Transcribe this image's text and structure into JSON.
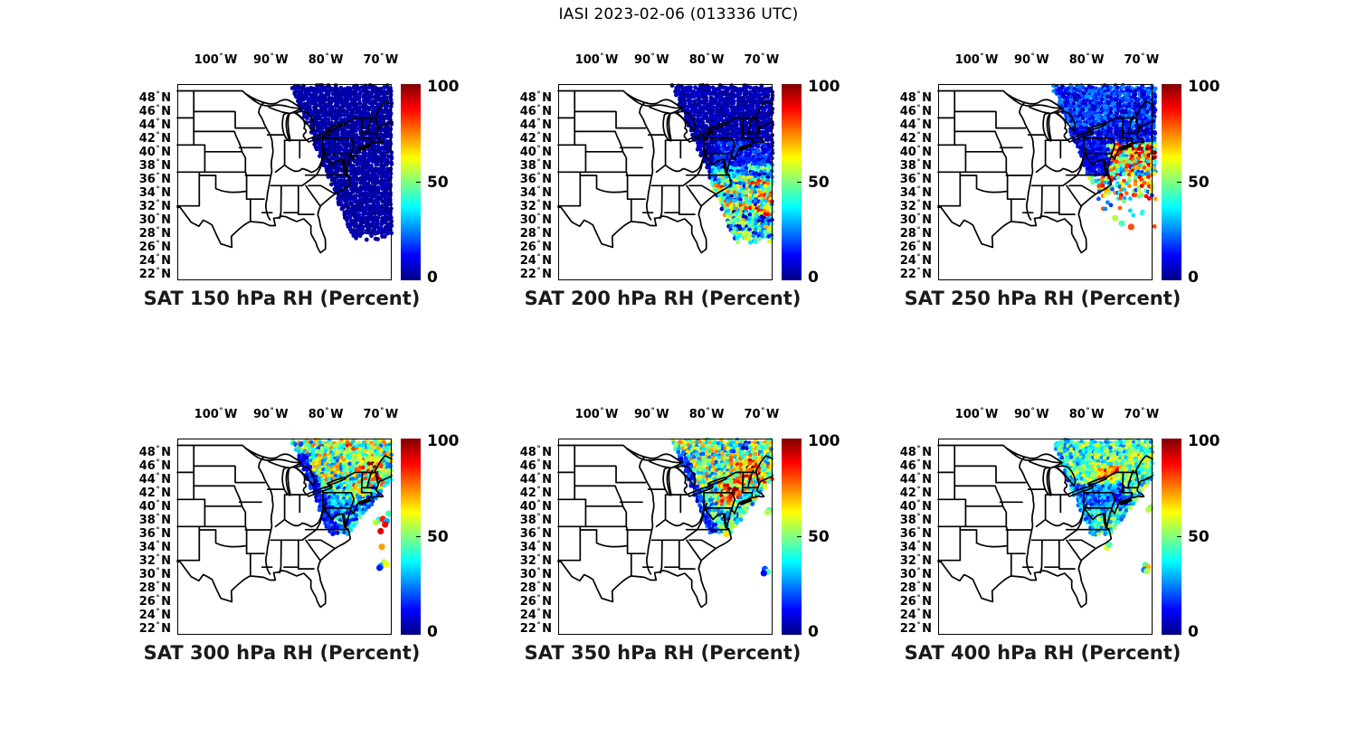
{
  "figure_title": "IASI 2023-02-06 (013336 UTC)",
  "axes": {
    "x_ticks": [
      {
        "label": "100",
        "dir": "W",
        "lon": -100
      },
      {
        "label": "90",
        "dir": "W",
        "lon": -90
      },
      {
        "label": "80",
        "dir": "W",
        "lon": -80
      },
      {
        "label": "70",
        "dir": "W",
        "lon": -70
      }
    ],
    "y_ticks": [
      {
        "label": "48",
        "dir": "N",
        "lat": 48
      },
      {
        "label": "46",
        "dir": "N",
        "lat": 46
      },
      {
        "label": "44",
        "dir": "N",
        "lat": 44
      },
      {
        "label": "42",
        "dir": "N",
        "lat": 42
      },
      {
        "label": "40",
        "dir": "N",
        "lat": 40
      },
      {
        "label": "38",
        "dir": "N",
        "lat": 38
      },
      {
        "label": "36",
        "dir": "N",
        "lat": 36
      },
      {
        "label": "34",
        "dir": "N",
        "lat": 34
      },
      {
        "label": "32",
        "dir": "N",
        "lat": 32
      },
      {
        "label": "30",
        "dir": "N",
        "lat": 30
      },
      {
        "label": "28",
        "dir": "N",
        "lat": 28
      },
      {
        "label": "26",
        "dir": "N",
        "lat": 26
      },
      {
        "label": "24",
        "dir": "N",
        "lat": 24
      },
      {
        "label": "22",
        "dir": "N",
        "lat": 22
      }
    ]
  },
  "colorbar": {
    "min": 0,
    "max": 100,
    "tick_labels": [
      "100",
      "50",
      "0"
    ],
    "tick_values": [
      100,
      50,
      0
    ],
    "colormap": "jet",
    "color_low": "#000080",
    "color_mid": "#80ff80",
    "color_high": "#800000"
  },
  "chart_data": {
    "type": "scatter",
    "subtype": "satellite-swath-map",
    "satellite": "IASI",
    "date": "2023-02-06",
    "time_utc": "013336",
    "variable": "RH",
    "units": "Percent",
    "value_range": [
      0,
      100
    ],
    "lon_range": [
      -107,
      -68
    ],
    "lat_range": [
      21,
      50
    ],
    "swath": {
      "edge_lon_at_50N": -86.5,
      "edge_slope_lon_per_lat": 0.5,
      "lat_top": 49.82
    },
    "panels": [
      {
        "id": "150",
        "level_hpa": 150,
        "title": "SAT 150 hPa RH (Percent)",
        "seed": 11,
        "row": 0,
        "right_lon": -67.9,
        "bottom_lat": 27.4,
        "zones": [
          {
            "base": 4,
            "amp": 2.5
          }
        ],
        "blobs": [
          {
            "lon": -85.3,
            "lat": 43.8,
            "sx": 0.6,
            "sy": 0.45,
            "a": 7
          }
        ],
        "density": [],
        "extra_dots": []
      },
      {
        "id": "200",
        "level_hpa": 200,
        "title": "SAT 200 hPa RH (Percent)",
        "seed": 22,
        "row": 0,
        "right_lon": -67.9,
        "bottom_lat": 26.9,
        "zones": [
          {
            "base": 5,
            "amp": 3.5
          },
          {
            "latMax": 41.5,
            "lonMin": -78.5,
            "base": 14,
            "amp": 9
          },
          {
            "latMax": 38.0,
            "lonMin": -79.0,
            "base": 30,
            "amp": 18,
            "streak": 10
          },
          {
            "latMax": 36.2,
            "base": 48,
            "amp": 30,
            "streak": 16
          },
          {
            "latMax": 30.5,
            "base": 38,
            "amp": 26,
            "streak": 14
          }
        ],
        "blobs": [
          {
            "lon": -86.2,
            "lat": 45.4,
            "sx": 0.45,
            "sy": 0.35,
            "a": 26
          },
          {
            "lon": -68.5,
            "lat": 34.0,
            "sx": 0.8,
            "sy": 0.6,
            "a": 25
          },
          {
            "lon": -70.0,
            "lat": 31.5,
            "sx": 0.9,
            "sy": 0.5,
            "a": 22
          }
        ],
        "density": [],
        "extra_dots": []
      },
      {
        "id": "250",
        "level_hpa": 250,
        "title": "SAT 250 hPa RH (Percent)",
        "seed": 33,
        "row": 0,
        "right_lon": -67.4,
        "bottom_lat": 27.6,
        "zones": [
          {
            "base": 11,
            "amp": 8
          },
          {
            "latMin": 43.5,
            "base": 16,
            "amp": 12
          },
          {
            "latMax": 41.2,
            "lonMin": -76.0,
            "base": 52,
            "amp": 38
          },
          {
            "latMax": 36.5,
            "base": 55,
            "amp": 38
          }
        ],
        "blobs": [
          {
            "lon": -69.5,
            "lat": 39.8,
            "sx": 2.2,
            "sy": 1.0,
            "a": 30
          },
          {
            "lon": -86.0,
            "lat": 45.3,
            "sx": 0.4,
            "sy": 0.3,
            "a": 20
          }
        ],
        "density": [
          {
            "latMax": 36.5,
            "p": 0.5
          },
          {
            "latMax": 33.0,
            "p": 0.22
          },
          {
            "latMax": 30.5,
            "p": 0.1
          }
        ],
        "extra_dots": [
          [
            -73.6,
            29.4,
            45
          ],
          [
            -71.9,
            28.9,
            80
          ],
          [
            -74.8,
            30.2,
            55
          ]
        ]
      },
      {
        "id": "300",
        "level_hpa": 300,
        "title": "SAT 300 hPa RH (Percent)",
        "seed": 44,
        "row": 1,
        "right_lon": -67.9,
        "dense_lat_min": 35.8,
        "zones": [
          {
            "base": 48,
            "amp": 30
          },
          {
            "latMax": 43.0,
            "base": 34,
            "amp": 24
          },
          {
            "latMax": 40.5,
            "base": 24,
            "amp": 16
          },
          {
            "latMax": 38.5,
            "base": 30,
            "amp": 22
          }
        ],
        "edge_band": {
          "w": 2.0,
          "base": 13,
          "amp": 9
        },
        "blobs": [
          {
            "lon": -71.8,
            "lat": 46.3,
            "sx": 1.6,
            "sy": 0.9,
            "a": 32
          },
          {
            "lon": -70.3,
            "lat": 44.2,
            "sx": 1.0,
            "sy": 0.7,
            "a": 28
          },
          {
            "lon": -74.3,
            "lat": 42.6,
            "sx": 1.1,
            "sy": 0.8,
            "a": 30
          },
          {
            "lon": -76.0,
            "lat": 48.8,
            "sx": 1.5,
            "sy": 0.6,
            "a": 20
          }
        ],
        "density": [],
        "extra_dots": [
          [
            -70.3,
            38.0,
            40
          ],
          [
            -69.6,
            38.1,
            85
          ],
          [
            -70.9,
            37.6,
            55
          ],
          [
            -68.9,
            37.8,
            30
          ],
          [
            -69.2,
            37.3,
            88
          ],
          [
            -70.0,
            36.3,
            90
          ],
          [
            -69.8,
            34.0,
            72
          ],
          [
            -69.4,
            31.7,
            55
          ],
          [
            -69.9,
            31.2,
            30
          ],
          [
            -70.2,
            30.9,
            15
          ],
          [
            -69.0,
            31.4,
            62
          ],
          [
            -68.6,
            38.9,
            45
          ]
        ]
      },
      {
        "id": "350",
        "level_hpa": 350,
        "title": "SAT 350 hPa RH (Percent)",
        "seed": 55,
        "row": 1,
        "right_lon": -67.9,
        "dense_lat_min": 35.8,
        "zones": [
          {
            "base": 50,
            "amp": 30
          },
          {
            "latMax": 42.8,
            "base": 45,
            "amp": 30
          },
          {
            "latMax": 40.0,
            "base": 38,
            "amp": 22
          },
          {
            "latMax": 38.0,
            "base": 42,
            "amp": 20
          }
        ],
        "edge_band": {
          "w": 1.7,
          "base": 16,
          "amp": 10
        },
        "blobs": [
          {
            "lon": -72.3,
            "lat": 45.6,
            "sx": 1.5,
            "sy": 1.0,
            "a": 38
          },
          {
            "lon": -75.2,
            "lat": 42.3,
            "sx": 1.2,
            "sy": 0.9,
            "a": 36
          },
          {
            "lon": -76.6,
            "lat": 41.2,
            "sx": 0.9,
            "sy": 0.7,
            "a": 30
          },
          {
            "lon": -69.6,
            "lat": 43.6,
            "sx": 0.9,
            "sy": 0.7,
            "a": 26
          },
          {
            "lon": -73.8,
            "lat": 48.5,
            "sx": 1.2,
            "sy": 0.7,
            "a": -25
          }
        ],
        "density": [],
        "extra_dots": [
          [
            -68.6,
            39.4,
            45
          ],
          [
            -68.9,
            39.1,
            55
          ],
          [
            -69.4,
            30.7,
            20
          ],
          [
            -68.9,
            30.3,
            45
          ],
          [
            -69.6,
            30.1,
            12
          ],
          [
            -76.4,
            35.9,
            65
          ]
        ]
      },
      {
        "id": "400",
        "level_hpa": 400,
        "title": "SAT 400 hPa RH (Percent)",
        "seed": 66,
        "row": 1,
        "right_lon": -67.9,
        "dense_lat_min": 35.8,
        "zones": [
          {
            "base": 44,
            "amp": 20
          },
          {
            "latMin": 46.5,
            "base": 42,
            "amp": 20
          },
          {
            "latMax": 43.2,
            "lonMax": -72.8,
            "base": 24,
            "amp": 13
          },
          {
            "latMax": 39.5,
            "base": 40,
            "amp": 22
          }
        ],
        "edge_band": {
          "w": 1.0,
          "base": 30,
          "amp": 14
        },
        "blobs": [
          {
            "lon": -76.6,
            "lat": 44.7,
            "sx": 1.3,
            "sy": 0.8,
            "a": 42
          },
          {
            "lon": -74.3,
            "lat": 45.4,
            "sx": 1.0,
            "sy": 0.6,
            "a": 26
          },
          {
            "lon": -70.5,
            "lat": 47.5,
            "sx": 1.2,
            "sy": 0.7,
            "a": 18
          },
          {
            "lon": -73.5,
            "lat": 41.3,
            "sx": 1.0,
            "sy": 0.8,
            "a": -14
          }
        ],
        "density": [],
        "extra_dots": [
          [
            -68.4,
            39.8,
            50
          ],
          [
            -68.7,
            39.5,
            55
          ],
          [
            -69.3,
            31.3,
            45
          ],
          [
            -68.9,
            31.0,
            70
          ],
          [
            -69.5,
            30.6,
            25
          ],
          [
            -69.0,
            30.4,
            55
          ],
          [
            -76.3,
            33.9,
            60
          ],
          [
            -75.9,
            34.3,
            45
          ]
        ]
      }
    ]
  }
}
